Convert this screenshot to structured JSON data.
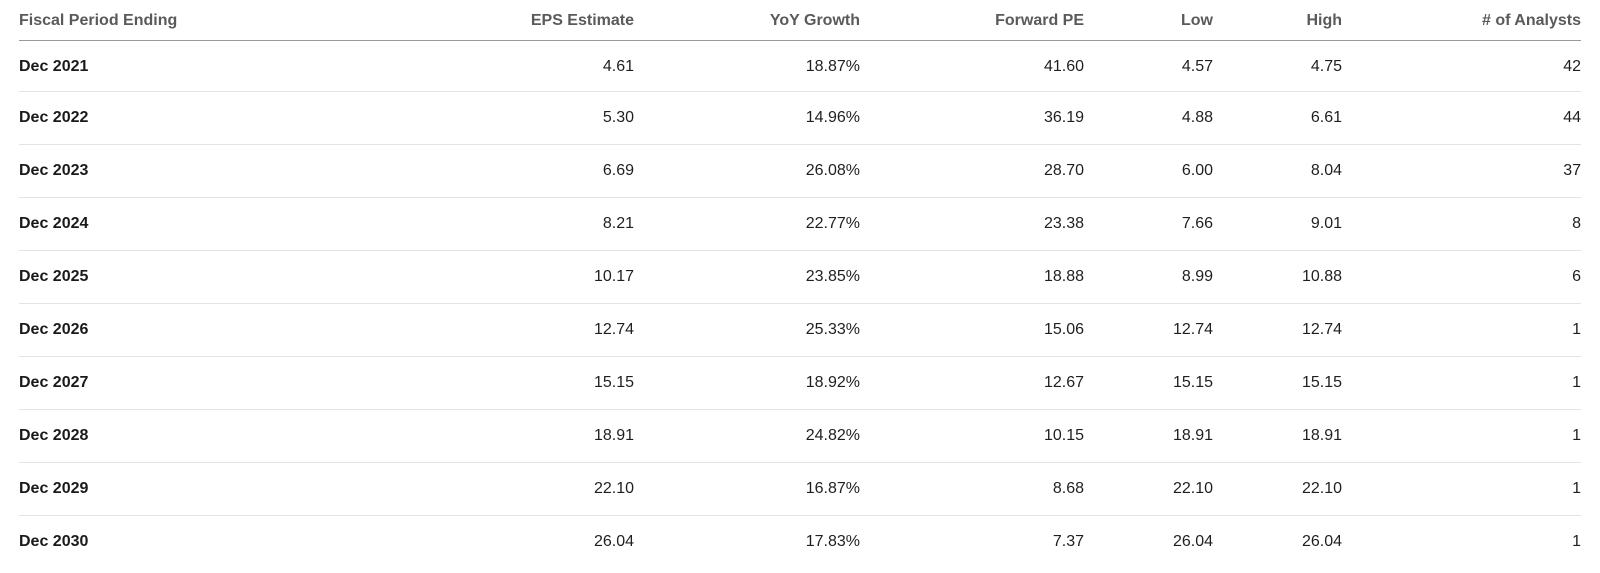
{
  "table": {
    "headers": {
      "period": "Fiscal Period Ending",
      "eps": "EPS Estimate",
      "yoy": "YoY Growth",
      "pe": "Forward PE",
      "low": "Low",
      "high": "High",
      "analysts": "# of Analysts"
    },
    "rows": [
      {
        "period": "Dec 2021",
        "eps": "4.61",
        "yoy": "18.87%",
        "pe": "41.60",
        "low": "4.57",
        "high": "4.75",
        "analysts": "42"
      },
      {
        "period": "Dec 2022",
        "eps": "5.30",
        "yoy": "14.96%",
        "pe": "36.19",
        "low": "4.88",
        "high": "6.61",
        "analysts": "44"
      },
      {
        "period": "Dec 2023",
        "eps": "6.69",
        "yoy": "26.08%",
        "pe": "28.70",
        "low": "6.00",
        "high": "8.04",
        "analysts": "37"
      },
      {
        "period": "Dec 2024",
        "eps": "8.21",
        "yoy": "22.77%",
        "pe": "23.38",
        "low": "7.66",
        "high": "9.01",
        "analysts": "8"
      },
      {
        "period": "Dec 2025",
        "eps": "10.17",
        "yoy": "23.85%",
        "pe": "18.88",
        "low": "8.99",
        "high": "10.88",
        "analysts": "6"
      },
      {
        "period": "Dec 2026",
        "eps": "12.74",
        "yoy": "25.33%",
        "pe": "15.06",
        "low": "12.74",
        "high": "12.74",
        "analysts": "1"
      },
      {
        "period": "Dec 2027",
        "eps": "15.15",
        "yoy": "18.92%",
        "pe": "12.67",
        "low": "15.15",
        "high": "15.15",
        "analysts": "1"
      },
      {
        "period": "Dec 2028",
        "eps": "18.91",
        "yoy": "24.82%",
        "pe": "10.15",
        "low": "18.91",
        "high": "18.91",
        "analysts": "1"
      },
      {
        "period": "Dec 2029",
        "eps": "22.10",
        "yoy": "16.87%",
        "pe": "8.68",
        "low": "22.10",
        "high": "22.10",
        "analysts": "1"
      },
      {
        "period": "Dec 2030",
        "eps": "26.04",
        "yoy": "17.83%",
        "pe": "7.37",
        "low": "26.04",
        "high": "26.04",
        "analysts": "1"
      }
    ]
  }
}
